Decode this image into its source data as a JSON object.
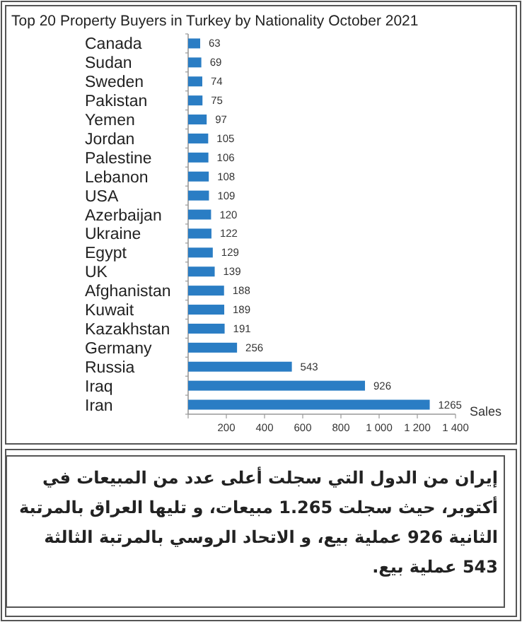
{
  "chart_data": {
    "type": "bar",
    "orientation": "horizontal",
    "title": "Top 20 Property Buyers in Turkey by Nationality October 2021",
    "xlabel": "Sales",
    "categories": [
      "Canada",
      "Sudan",
      "Sweden",
      "Pakistan",
      "Yemen",
      "Jordan",
      "Palestine",
      "Lebanon",
      "USA",
      "Azerbaijan",
      "Ukraine",
      "Egypt",
      "UK",
      "Afghanistan",
      "Kuwait",
      "Kazakhstan",
      "Germany",
      "Russia",
      "Iraq",
      "Iran"
    ],
    "values": [
      63,
      69,
      74,
      75,
      97,
      105,
      106,
      108,
      109,
      120,
      122,
      129,
      139,
      188,
      189,
      191,
      256,
      543,
      926,
      1265
    ],
    "color": "#2a7dc4",
    "data_labels": true,
    "xlim": [
      0,
      1400
    ],
    "xticks": [
      {
        "value": 0,
        "label": null
      },
      200,
      400,
      600,
      800,
      {
        "value": 1000,
        "label": "1 000"
      },
      {
        "value": 1200,
        "label": "1 200"
      },
      {
        "value": 1400,
        "label": "1 400"
      }
    ],
    "annotations": [
      "إيران من الدول التي سجلت أعلى عدد من المبيعات في أكتوبر، حيث سجلت 1.265 مبيعات، و تليها العراق بالمرتبة الثانية 926 عملية بيع، و الاتحاد الروسي بالمرتبة الثالثة 543 عملية بيع."
    ]
  }
}
